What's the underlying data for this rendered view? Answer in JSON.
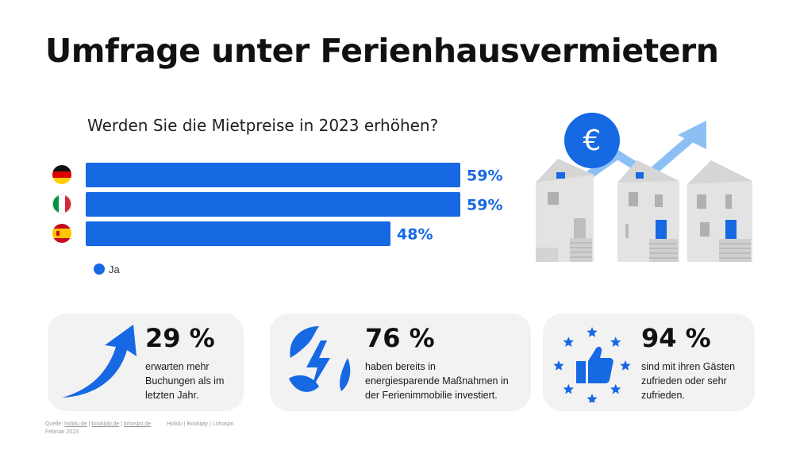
{
  "title": "Umfrage unter Ferienhausvermietern",
  "chart_data": {
    "type": "bar",
    "orientation": "horizontal",
    "title": "Werden Sie die Mietpreise in 2023 erhöhen?",
    "categories": [
      "Deutschland",
      "Italien",
      "Spanien"
    ],
    "series": [
      {
        "name": "Ja",
        "values": [
          59,
          59,
          48
        ],
        "labels": [
          "59%",
          "59%",
          "48%"
        ]
      }
    ],
    "xlim": [
      0,
      100
    ],
    "grid": false,
    "legend": "bottom-left",
    "bar_color": "#1668e3"
  },
  "stats": [
    {
      "value": "29 %",
      "lines": [
        "erwarten mehr",
        "Buchungen als im",
        "letzten Jahr."
      ],
      "icon": "arrow-up-icon"
    },
    {
      "value": "76 %",
      "lines": [
        "haben bereits in",
        "energiesparende Maßnahmen in",
        "der Ferienimmobilie investiert."
      ],
      "icon": "energy-leaf-icon"
    },
    {
      "value": "94 %",
      "lines": [
        "sind mit ihren Gästen",
        "zufrieden oder sehr",
        "zufrieden."
      ],
      "icon": "thumbs-up-stars-icon"
    }
  ],
  "footer": {
    "source_prefix": "Quelle: ",
    "sources": [
      "holidu.de",
      "bookiply.de",
      "lohospo.de"
    ],
    "separator": " | ",
    "date": "Februar 2023",
    "brands": "Holidu | Bookiply | Lohospo"
  },
  "colors": {
    "accent": "#1668e3",
    "card_bg": "#f2f2f2",
    "illustration_arrow": "#8cc0f5",
    "house": "#e4e4e4"
  }
}
